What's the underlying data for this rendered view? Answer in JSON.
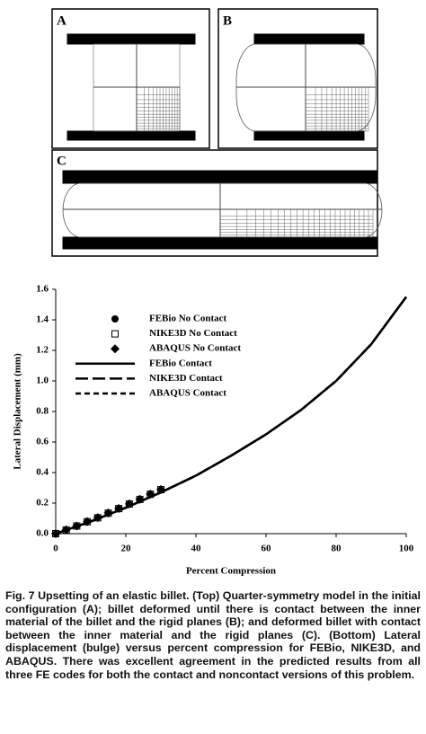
{
  "panels": [
    {
      "label": "A"
    },
    {
      "label": "B"
    },
    {
      "label": "C"
    }
  ],
  "chart_data": {
    "type": "line",
    "xlabel": "Percent Compression",
    "ylabel": "Lateral Displacement (mm)",
    "xlim": [
      0,
      100
    ],
    "ylim": [
      0,
      1.6
    ],
    "xticks": [
      0,
      20,
      40,
      60,
      80,
      100
    ],
    "yticks": [
      {
        "value": 0,
        "label": "0.0"
      },
      {
        "value": 0.2,
        "label": "0.2"
      },
      {
        "value": 0.4,
        "label": "0.4"
      },
      {
        "value": 0.6,
        "label": "0.6"
      },
      {
        "value": 0.8,
        "label": "0.8"
      },
      {
        "value": 1.0,
        "label": "1.0"
      },
      {
        "value": 1.2,
        "label": "1.2"
      },
      {
        "value": 1.4,
        "label": "1.4"
      },
      {
        "value": 1.6,
        "label": "1.6"
      }
    ],
    "series": [
      {
        "name": "FEBio No Contact",
        "color": "#000000",
        "marker": "circle",
        "x": [
          0,
          3,
          6,
          9,
          12,
          15,
          18,
          21,
          24,
          27,
          30
        ],
        "values": [
          0,
          0.025,
          0.05,
          0.08,
          0.105,
          0.135,
          0.165,
          0.195,
          0.225,
          0.26,
          0.29
        ]
      },
      {
        "name": "NIKE3D No Contact",
        "color": "#000000",
        "marker": "square",
        "x": [
          0,
          3,
          6,
          9,
          12,
          15,
          18,
          21,
          24,
          27,
          30
        ],
        "values": [
          0,
          0.024,
          0.05,
          0.078,
          0.104,
          0.134,
          0.164,
          0.194,
          0.224,
          0.258,
          0.288
        ]
      },
      {
        "name": "ABAQUS No Contact",
        "color": "#000000",
        "marker": "diamond",
        "x": [
          0,
          3,
          6,
          9,
          12,
          15,
          18,
          21,
          24,
          27,
          30
        ],
        "values": [
          0,
          0.025,
          0.05,
          0.079,
          0.105,
          0.135,
          0.165,
          0.195,
          0.225,
          0.259,
          0.289
        ]
      },
      {
        "name": "FEBio Contact",
        "color": "#000000",
        "dash": "solid",
        "x": [
          0,
          10,
          20,
          30,
          40,
          50,
          60,
          70,
          80,
          90,
          100
        ],
        "values": [
          0,
          0.08,
          0.17,
          0.27,
          0.38,
          0.51,
          0.65,
          0.81,
          1.0,
          1.24,
          1.55
        ]
      },
      {
        "name": "NIKE3D Contact",
        "color": "#000000",
        "dash": "long",
        "x": [
          0,
          10,
          20,
          30,
          40,
          50,
          60,
          70,
          80,
          90,
          100
        ],
        "values": [
          0,
          0.08,
          0.17,
          0.27,
          0.38,
          0.51,
          0.65,
          0.81,
          1.0,
          1.24,
          1.55
        ]
      },
      {
        "name": "ABAQUS Contact",
        "color": "#000000",
        "dash": "short",
        "x": [
          0,
          10,
          20,
          30,
          40,
          50,
          60,
          70,
          80,
          90,
          100
        ],
        "values": [
          0,
          0.08,
          0.17,
          0.27,
          0.38,
          0.51,
          0.65,
          0.81,
          1.0,
          1.24,
          1.55
        ]
      }
    ]
  },
  "caption": "Fig. 7  Upsetting of an elastic billet. (Top) Quarter-symmetry model in the initial configuration (A); billet deformed until there is contact between the inner material of the billet and the rigid planes (B); and deformed billet with contact between the inner material and the rigid planes (C). (Bottom) Lateral displacement (bulge) versus percent compression for FEBio, NIKE3D, and ABAQUS. There was excellent agreement in the predicted results from all three FE codes for both the contact and noncontact versions of this problem."
}
